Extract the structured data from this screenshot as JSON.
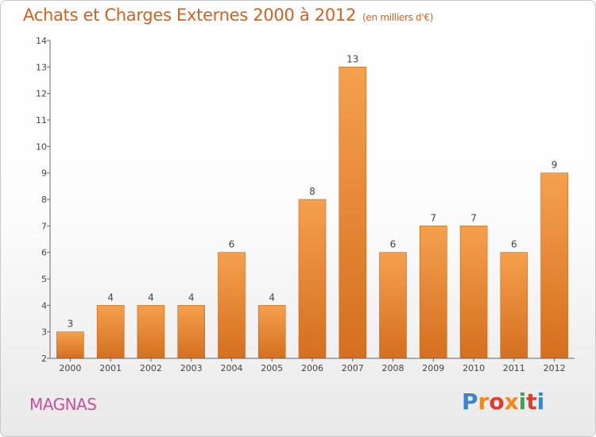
{
  "header": {
    "title": "Achats et Charges Externes 2000 à 2012",
    "subtitle": "(en milliers d'€)"
  },
  "footer": {
    "commune": "MAGNAS",
    "logo_text": "Proxiti"
  },
  "colors": {
    "bar_top": "#f5a04e",
    "bar_bottom": "#d46f1f",
    "title": "#d85f1c",
    "commune": "#c94f9a",
    "logo": [
      "#3a86c8",
      "#f08a1c",
      "#e03c31",
      "#f08a1c",
      "#3aa84a",
      "#e03c31",
      "#3a86c8"
    ]
  },
  "chart_data": {
    "type": "bar",
    "title": "Achats et Charges Externes 2000 à 2012",
    "subtitle": "(en milliers d'€)",
    "categories": [
      "2000",
      "2001",
      "2002",
      "2003",
      "2004",
      "2005",
      "2006",
      "2007",
      "2008",
      "2009",
      "2010",
      "2011",
      "2012"
    ],
    "values": [
      3,
      4,
      4,
      4,
      6,
      4,
      8,
      13,
      6,
      7,
      7,
      6,
      9
    ],
    "data_labels": [
      "3",
      "4",
      "4",
      "4",
      "6",
      "4",
      "8",
      "13",
      "6",
      "7",
      "7",
      "6",
      "9"
    ],
    "ylim": [
      2,
      14
    ],
    "yticks": [
      "2",
      "3",
      "4",
      "5",
      "6",
      "7",
      "8",
      "9",
      "10",
      "11",
      "12",
      "13",
      "14"
    ],
    "grid": false,
    "legend": "none"
  }
}
